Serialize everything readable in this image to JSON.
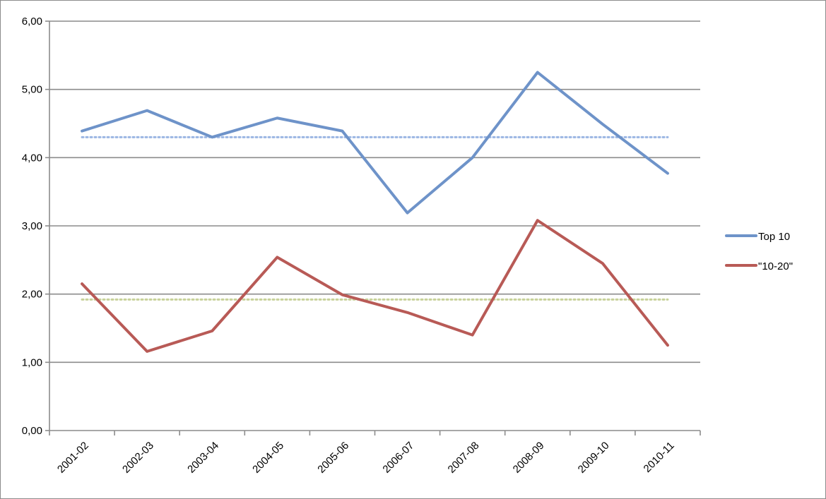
{
  "chart_data": {
    "type": "line",
    "title": "",
    "xlabel": "",
    "ylabel": "",
    "categories": [
      "2001-02",
      "2002-03",
      "2003-04",
      "2004-05",
      "2005-06",
      "2006-07",
      "2007-08",
      "2008-09",
      "2009-10",
      "2010-11"
    ],
    "y_tick_labels": [
      "0,00",
      "1,00",
      "2,00",
      "3,00",
      "4,00",
      "5,00",
      "6,00"
    ],
    "ylim": [
      0,
      6
    ],
    "y_step": 1,
    "grid": true,
    "legend_position": "right",
    "series": [
      {
        "name": "Top 10",
        "color": "#6e93c9",
        "values": [
          4.39,
          4.69,
          4.3,
          4.58,
          4.39,
          3.19,
          4.0,
          5.25,
          4.49,
          3.77
        ]
      },
      {
        "name": "\"10-20\"",
        "color": "#b85a56",
        "values": [
          2.15,
          1.16,
          1.46,
          2.54,
          1.99,
          1.73,
          1.4,
          3.08,
          2.45,
          1.25
        ]
      }
    ],
    "reference_lines": [
      {
        "value": 4.3,
        "color": "#9bb6e3",
        "style": "dotted"
      },
      {
        "value": 1.92,
        "color": "#c7d199",
        "style": "dotted"
      }
    ]
  }
}
